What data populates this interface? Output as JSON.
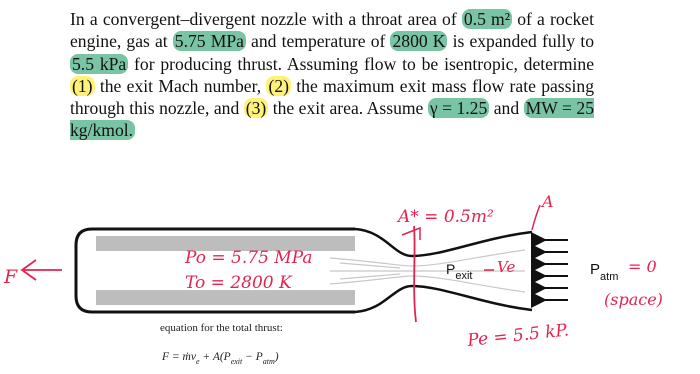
{
  "problem": {
    "segments": [
      {
        "text": "In a convergent–divergent nozzle with a throat area of "
      },
      {
        "text": "0.5 m²",
        "highlight": "green"
      },
      {
        "text": " of a rocket engine, gas at "
      },
      {
        "text": "5.75 MPa",
        "highlight": "green"
      },
      {
        "text": " and temperature of "
      },
      {
        "text": "2800 K",
        "highlight": "green"
      },
      {
        "text": " is expanded fully to "
      },
      {
        "text": "5.5 kPa",
        "highlight": "green"
      },
      {
        "text": " for producing thrust. Assuming flow to be isentropic, determine "
      },
      {
        "text": "(1)",
        "highlight": "yellow"
      },
      {
        "text": " the exit Mach number, "
      },
      {
        "text": "(2)",
        "highlight": "yellow"
      },
      {
        "text": " the maximum exit mass flow rate passing through this nozzle, and "
      },
      {
        "text": "(3)",
        "highlight": "yellow"
      },
      {
        "text": " the exit area. Assume "
      },
      {
        "text": "γ = 1.25",
        "highlight": "green"
      },
      {
        "text": " and "
      },
      {
        "text": "MW = 25 kg/kmol.",
        "highlight": "green"
      }
    ]
  },
  "diagram": {
    "throat_area": "A* = 0.5m²",
    "exit_area": "A",
    "chamber_pressure": "Po = 5.75 MPa",
    "chamber_temperature": "To = 2800 K",
    "force": "F",
    "exit_pressure_label": {
      "symbol": "P",
      "subscript": "exit"
    },
    "exit_velocity": "Ve",
    "ambient_pressure": {
      "symbol": "P",
      "subscript": "atm",
      "value": "= 0"
    },
    "ambient_note": "(space)",
    "exit_pressure_value": "Pe = 5.5 kP.",
    "equation_caption": "equation for the total thrust:",
    "equation": [
      {
        "text": "F = ṁv"
      },
      {
        "text": "e",
        "sub": true
      },
      {
        "text": " + A(P"
      },
      {
        "text": "exit",
        "sub": true
      },
      {
        "text": " − P"
      },
      {
        "text": "atm",
        "sub": true
      },
      {
        "text": ")"
      }
    ]
  }
}
